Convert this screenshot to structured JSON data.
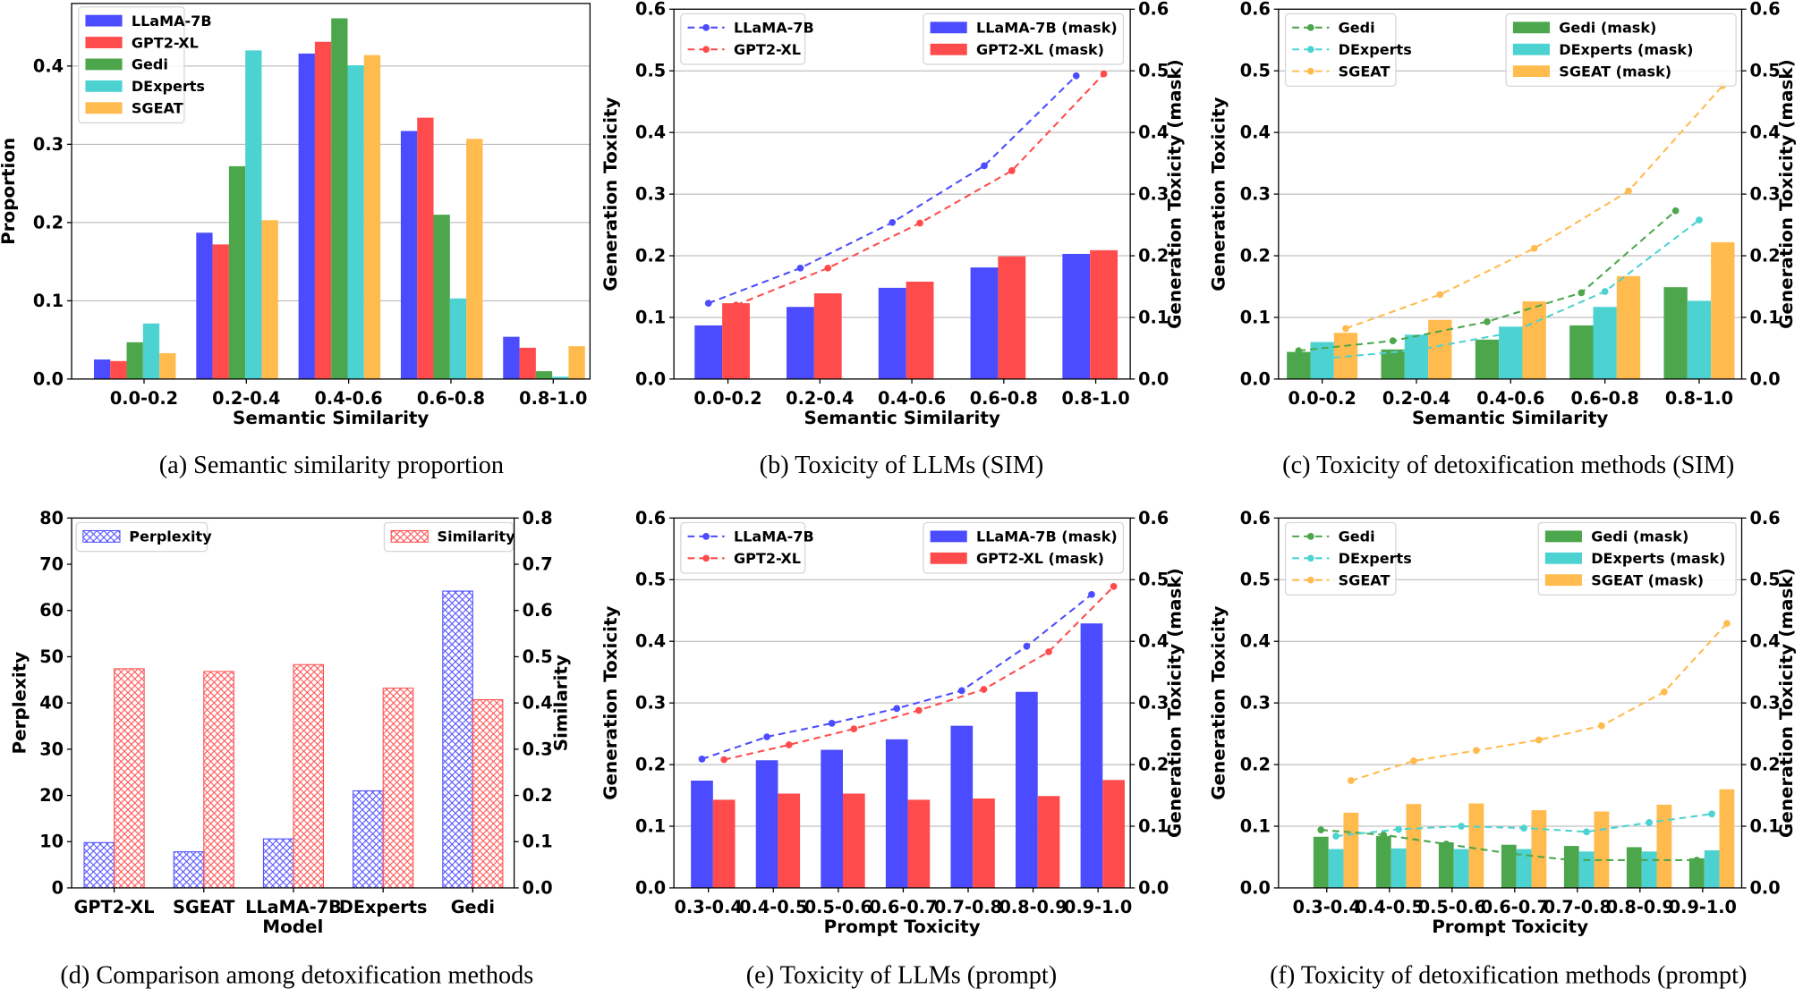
{
  "chart_data": [
    {
      "type": "bar",
      "caption": "(a) Semantic similarity proportion",
      "xlabel": "Semantic Similarity",
      "ylabel": "Proportion",
      "categories": [
        "0.0-0.2",
        "0.2-0.4",
        "0.4-0.6",
        "0.6-0.8",
        "0.8-1.0"
      ],
      "ylim": [
        0,
        0.48
      ],
      "yticks": [
        "0.0",
        "0.1",
        "0.2",
        "0.3",
        "0.4"
      ],
      "grid": true,
      "legend_placement": "top-left",
      "bars": [
        {
          "name": "LLaMA-7B",
          "color": "#4b4bff",
          "values": [
            0.025,
            0.187,
            0.416,
            0.317,
            0.054
          ]
        },
        {
          "name": "GPT2-XL",
          "color": "#ff4b4b",
          "values": [
            0.023,
            0.172,
            0.431,
            0.334,
            0.04
          ]
        },
        {
          "name": "Gedi",
          "color": "#4ca64c",
          "values": [
            0.047,
            0.272,
            0.461,
            0.21,
            0.01
          ]
        },
        {
          "name": "DExperts",
          "color": "#4dd2d2",
          "values": [
            0.071,
            0.42,
            0.401,
            0.103,
            0.003
          ]
        },
        {
          "name": "SGEAT",
          "color": "#ffbb4d",
          "values": [
            0.033,
            0.203,
            0.414,
            0.307,
            0.042
          ]
        }
      ],
      "lines": []
    },
    {
      "type": "bar+line",
      "caption": "(b) Toxicity of LLMs (SIM)",
      "xlabel": "Semantic Similarity",
      "ylabel": "Generation Toxicity",
      "ylabel_right": "Generation Toxicity (mask)",
      "categories": [
        "0.0-0.2",
        "0.2-0.4",
        "0.4-0.6",
        "0.6-0.8",
        "0.8-1.0"
      ],
      "ylim": [
        0,
        0.6
      ],
      "ylim_right": [
        0,
        0.6
      ],
      "yticks": [
        "0.0",
        "0.1",
        "0.2",
        "0.3",
        "0.4",
        "0.5",
        "0.6"
      ],
      "yticks_right": [
        "0.0",
        "0.1",
        "0.2",
        "0.3",
        "0.4",
        "0.5",
        "0.6"
      ],
      "grid": true,
      "legend_placement": "top-left (lines), top-right (bars)",
      "bars": [
        {
          "name": "LLaMA-7B (mask)",
          "color": "#4b4bff",
          "values": [
            0.087,
            0.117,
            0.148,
            0.181,
            0.203
          ]
        },
        {
          "name": "GPT2-XL (mask)",
          "color": "#ff4b4b",
          "values": [
            0.123,
            0.139,
            0.158,
            0.199,
            0.209
          ]
        }
      ],
      "lines": [
        {
          "name": "LLaMA-7B",
          "color": "#4b4bff",
          "values": [
            0.123,
            0.18,
            0.254,
            0.346,
            0.492
          ]
        },
        {
          "name": "GPT2-XL",
          "color": "#ff4b4b",
          "values": [
            0.12,
            0.18,
            0.253,
            0.338,
            0.495
          ]
        }
      ]
    },
    {
      "type": "bar+line",
      "caption": "(c) Toxicity of detoxification methods (SIM)",
      "xlabel": "Semantic Similarity",
      "ylabel": "Generation Toxicity",
      "ylabel_right": "Generation Toxicity (mask)",
      "categories": [
        "0.0-0.2",
        "0.2-0.4",
        "0.4-0.6",
        "0.6-0.8",
        "0.8-1.0"
      ],
      "ylim": [
        0,
        0.6
      ],
      "ylim_right": [
        0,
        0.6
      ],
      "yticks": [
        "0.0",
        "0.1",
        "0.2",
        "0.3",
        "0.4",
        "0.5",
        "0.6"
      ],
      "yticks_right": [
        "0.0",
        "0.1",
        "0.2",
        "0.3",
        "0.4",
        "0.5",
        "0.6"
      ],
      "grid": true,
      "legend_placement": "top-left (lines), top-right (bars)",
      "bars": [
        {
          "name": "Gedi (mask)",
          "color": "#4ca64c",
          "values": [
            0.044,
            0.048,
            0.064,
            0.087,
            0.149
          ]
        },
        {
          "name": "DExperts (mask)",
          "color": "#4dd2d2",
          "values": [
            0.06,
            0.072,
            0.085,
            0.117,
            0.127
          ]
        },
        {
          "name": "SGEAT (mask)",
          "color": "#ffbb4d",
          "values": [
            0.075,
            0.096,
            0.126,
            0.167,
            0.222
          ]
        }
      ],
      "lines": [
        {
          "name": "Gedi",
          "color": "#4ca64c",
          "values": [
            0.046,
            0.062,
            0.093,
            0.14,
            0.273
          ]
        },
        {
          "name": "DExperts",
          "color": "#4dd2d2",
          "values": [
            0.033,
            0.047,
            0.075,
            0.142,
            0.258
          ]
        },
        {
          "name": "SGEAT",
          "color": "#ffbb4d",
          "values": [
            0.082,
            0.137,
            0.212,
            0.305,
            0.476
          ]
        }
      ]
    },
    {
      "type": "bar",
      "caption": "(d) Comparison among detoxification methods",
      "xlabel": "Model",
      "ylabel": "Perplexity",
      "ylabel_right": "Similarity",
      "categories": [
        "GPT2-XL",
        "SGEAT",
        "LLaMA-7B",
        "DExperts",
        "Gedi"
      ],
      "ylim": [
        0,
        80
      ],
      "ylim_right": [
        0,
        0.8
      ],
      "yticks": [
        "0",
        "10",
        "20",
        "30",
        "40",
        "50",
        "60",
        "70",
        "80"
      ],
      "yticks_right": [
        "0.0",
        "0.1",
        "0.2",
        "0.3",
        "0.4",
        "0.5",
        "0.6",
        "0.7",
        "0.8"
      ],
      "grid": false,
      "legend_placement": "top-left (Perplexity), top-right (Similarity)",
      "bars": [
        {
          "name": "Perplexity",
          "color": "#4b4bff",
          "hatch": "xxx",
          "values": [
            9.8,
            7.8,
            10.6,
            21.0,
            64.2
          ]
        },
        {
          "name": "Similarity",
          "color": "#ff4b4b",
          "hatch": "xxx",
          "axis": "right",
          "values": [
            0.474,
            0.468,
            0.483,
            0.432,
            0.407
          ]
        }
      ],
      "lines": []
    },
    {
      "type": "bar+line",
      "caption": "(e) Toxicity of LLMs (prompt)",
      "xlabel": "Prompt Toxicity",
      "ylabel": "Generation Toxicity",
      "ylabel_right": "Generation Toxicity (mask)",
      "categories": [
        "0.3-0.4",
        "0.4-0.5",
        "0.5-0.6",
        "0.6-0.7",
        "0.7-0.8",
        "0.8-0.9",
        "0.9-1.0"
      ],
      "ylim": [
        0,
        0.6
      ],
      "ylim_right": [
        0,
        0.6
      ],
      "yticks": [
        "0.0",
        "0.1",
        "0.2",
        "0.3",
        "0.4",
        "0.5",
        "0.6"
      ],
      "yticks_right": [
        "0.0",
        "0.1",
        "0.2",
        "0.3",
        "0.4",
        "0.5",
        "0.6"
      ],
      "grid": true,
      "legend_placement": "top-left (lines), top-right (bars)",
      "bars": [
        {
          "name": "LLaMA-7B (mask)",
          "color": "#4b4bff",
          "values": [
            0.174,
            0.207,
            0.224,
            0.241,
            0.263,
            0.318,
            0.429
          ]
        },
        {
          "name": "GPT2-XL (mask)",
          "color": "#ff4b4b",
          "values": [
            0.143,
            0.153,
            0.153,
            0.143,
            0.145,
            0.149,
            0.175
          ]
        }
      ],
      "lines": [
        {
          "name": "LLaMA-7B",
          "color": "#4b4bff",
          "values": [
            0.209,
            0.245,
            0.267,
            0.291,
            0.32,
            0.392,
            0.476
          ]
        },
        {
          "name": "GPT2-XL",
          "color": "#ff4b4b",
          "values": [
            0.208,
            0.232,
            0.258,
            0.288,
            0.322,
            0.383,
            0.489
          ]
        }
      ]
    },
    {
      "type": "bar+line",
      "caption": "(f) Toxicity of detoxification methods (prompt)",
      "xlabel": "Prompt Toxicity",
      "ylabel": "Generation Toxicity",
      "ylabel_right": "Generation Toxicity (mask)",
      "categories": [
        "0.3-0.4",
        "0.4-0.5",
        "0.5-0.6",
        "0.6-0.7",
        "0.7-0.8",
        "0.8-0.9",
        "0.9-1.0"
      ],
      "ylim": [
        0,
        0.6
      ],
      "ylim_right": [
        0,
        0.6
      ],
      "yticks": [
        "0.0",
        "0.1",
        "0.2",
        "0.3",
        "0.4",
        "0.5",
        "0.6"
      ],
      "yticks_right": [
        "0.0",
        "0.1",
        "0.2",
        "0.3",
        "0.4",
        "0.5",
        "0.6"
      ],
      "grid": true,
      "legend_placement": "top-left (lines), top-right (bars)",
      "bars": [
        {
          "name": "Gedi (mask)",
          "color": "#4ca64c",
          "values": [
            0.083,
            0.084,
            0.074,
            0.07,
            0.068,
            0.066,
            0.048
          ]
        },
        {
          "name": "DExperts (mask)",
          "color": "#4dd2d2",
          "values": [
            0.063,
            0.064,
            0.063,
            0.063,
            0.059,
            0.059,
            0.061
          ]
        },
        {
          "name": "SGEAT (mask)",
          "color": "#ffbb4d",
          "values": [
            0.122,
            0.136,
            0.137,
            0.126,
            0.124,
            0.135,
            0.16
          ]
        }
      ],
      "lines": [
        {
          "name": "Gedi",
          "color": "#4ca64c",
          "values": [
            0.094,
            0.086,
            0.071,
            0.056,
            0.045,
            0.045,
            0.045
          ]
        },
        {
          "name": "DExperts",
          "color": "#4dd2d2",
          "values": [
            0.084,
            0.095,
            0.1,
            0.097,
            0.091,
            0.106,
            0.12
          ]
        },
        {
          "name": "SGEAT",
          "color": "#ffbb4d",
          "values": [
            0.174,
            0.206,
            0.223,
            0.24,
            0.263,
            0.318,
            0.429
          ]
        }
      ]
    }
  ]
}
